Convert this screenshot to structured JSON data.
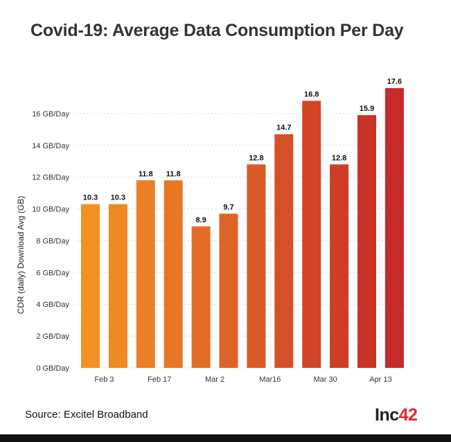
{
  "chart_data": {
    "type": "bar",
    "title": "Covid-19: Average Data Consumption Per Day",
    "ylabel": "CDR (daily) Download Avg (GB)",
    "xlabel": "",
    "ylim": [
      0,
      18
    ],
    "yticks": [
      {
        "value": 0,
        "label": "0 GB/Day"
      },
      {
        "value": 2,
        "label": "2 GB/Day"
      },
      {
        "value": 4,
        "label": "4 GB/Day"
      },
      {
        "value": 6,
        "label": "6 GB/Day"
      },
      {
        "value": 8,
        "label": "8 GB/Day"
      },
      {
        "value": 10,
        "label": "10 GB/Day"
      },
      {
        "value": 12,
        "label": "12 GB/Day"
      },
      {
        "value": 14,
        "label": "14 GB/Day"
      },
      {
        "value": 16,
        "label": "16 GB/Day"
      }
    ],
    "values": [
      10.3,
      10.3,
      11.8,
      11.8,
      8.9,
      9.7,
      12.8,
      14.7,
      16.8,
      12.8,
      15.9,
      17.6
    ],
    "value_labels": [
      "10.3",
      "10.3",
      "11.8",
      "11.8",
      "8.9",
      "9.7",
      "12.8",
      "14.7",
      "16.8",
      "12.8",
      "15.9",
      "17.6"
    ],
    "x_tick_labels": [
      "Feb 3",
      "Feb 17",
      "Mar 2",
      "Mar16",
      "Mar 30",
      "Apr 13"
    ],
    "grid": true,
    "colors": {
      "gradient_start": "#f39223",
      "gradient_end": "#c62a29",
      "grid": "#d9d9d9",
      "text": "#333333"
    }
  },
  "source": "Source: Excitel Broadband",
  "logo": {
    "text": "Inc",
    "number": "42"
  }
}
